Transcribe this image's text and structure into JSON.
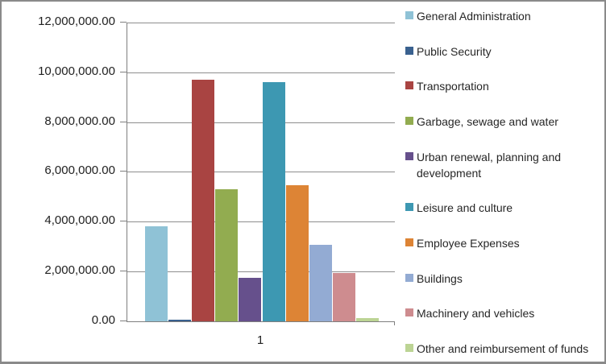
{
  "chart_data": {
    "type": "bar",
    "categories": [
      "1"
    ],
    "series": [
      {
        "name": "General Administration",
        "color": "#8fc2d6",
        "values": [
          3820000
        ]
      },
      {
        "name": "Public Security",
        "color": "#3a618f",
        "values": [
          80000
        ]
      },
      {
        "name": "Transportation",
        "color": "#a94442",
        "values": [
          9700000
        ]
      },
      {
        "name": "Garbage, sewage and water",
        "color": "#92ac50",
        "values": [
          5310000
        ]
      },
      {
        "name": "Urban renewal, planning and development",
        "color": "#66508c",
        "values": [
          1750000
        ]
      },
      {
        "name": "Leisure and culture",
        "color": "#3d98b2",
        "values": [
          9600000
        ]
      },
      {
        "name": "Employee Expenses",
        "color": "#dd8435",
        "values": [
          5470000
        ]
      },
      {
        "name": "Buildings",
        "color": "#93abd3",
        "values": [
          3070000
        ]
      },
      {
        "name": "Machinery and vehicles",
        "color": "#ce8c8f",
        "values": [
          1940000
        ]
      },
      {
        "name": "Other and reimbursement of funds",
        "color": "#bcd494",
        "values": [
          140000
        ]
      }
    ],
    "title": "",
    "xlabel": "",
    "ylabel": "",
    "ylim": [
      0,
      12000000
    ],
    "ytick_step": 2000000,
    "ytick_labels": [
      "0.00",
      "2,000,000.00",
      "4,000,000.00",
      "6,000,000.00",
      "8,000,000.00",
      "10,000,000.00",
      "12,000,000.00"
    ],
    "grid": true,
    "legend_position": "right",
    "colors": {
      "gridline": "#8e8e8e",
      "axis": "#7f7f7f",
      "text": "#1f1f1f",
      "frame_border": "#8a8a8a"
    }
  }
}
